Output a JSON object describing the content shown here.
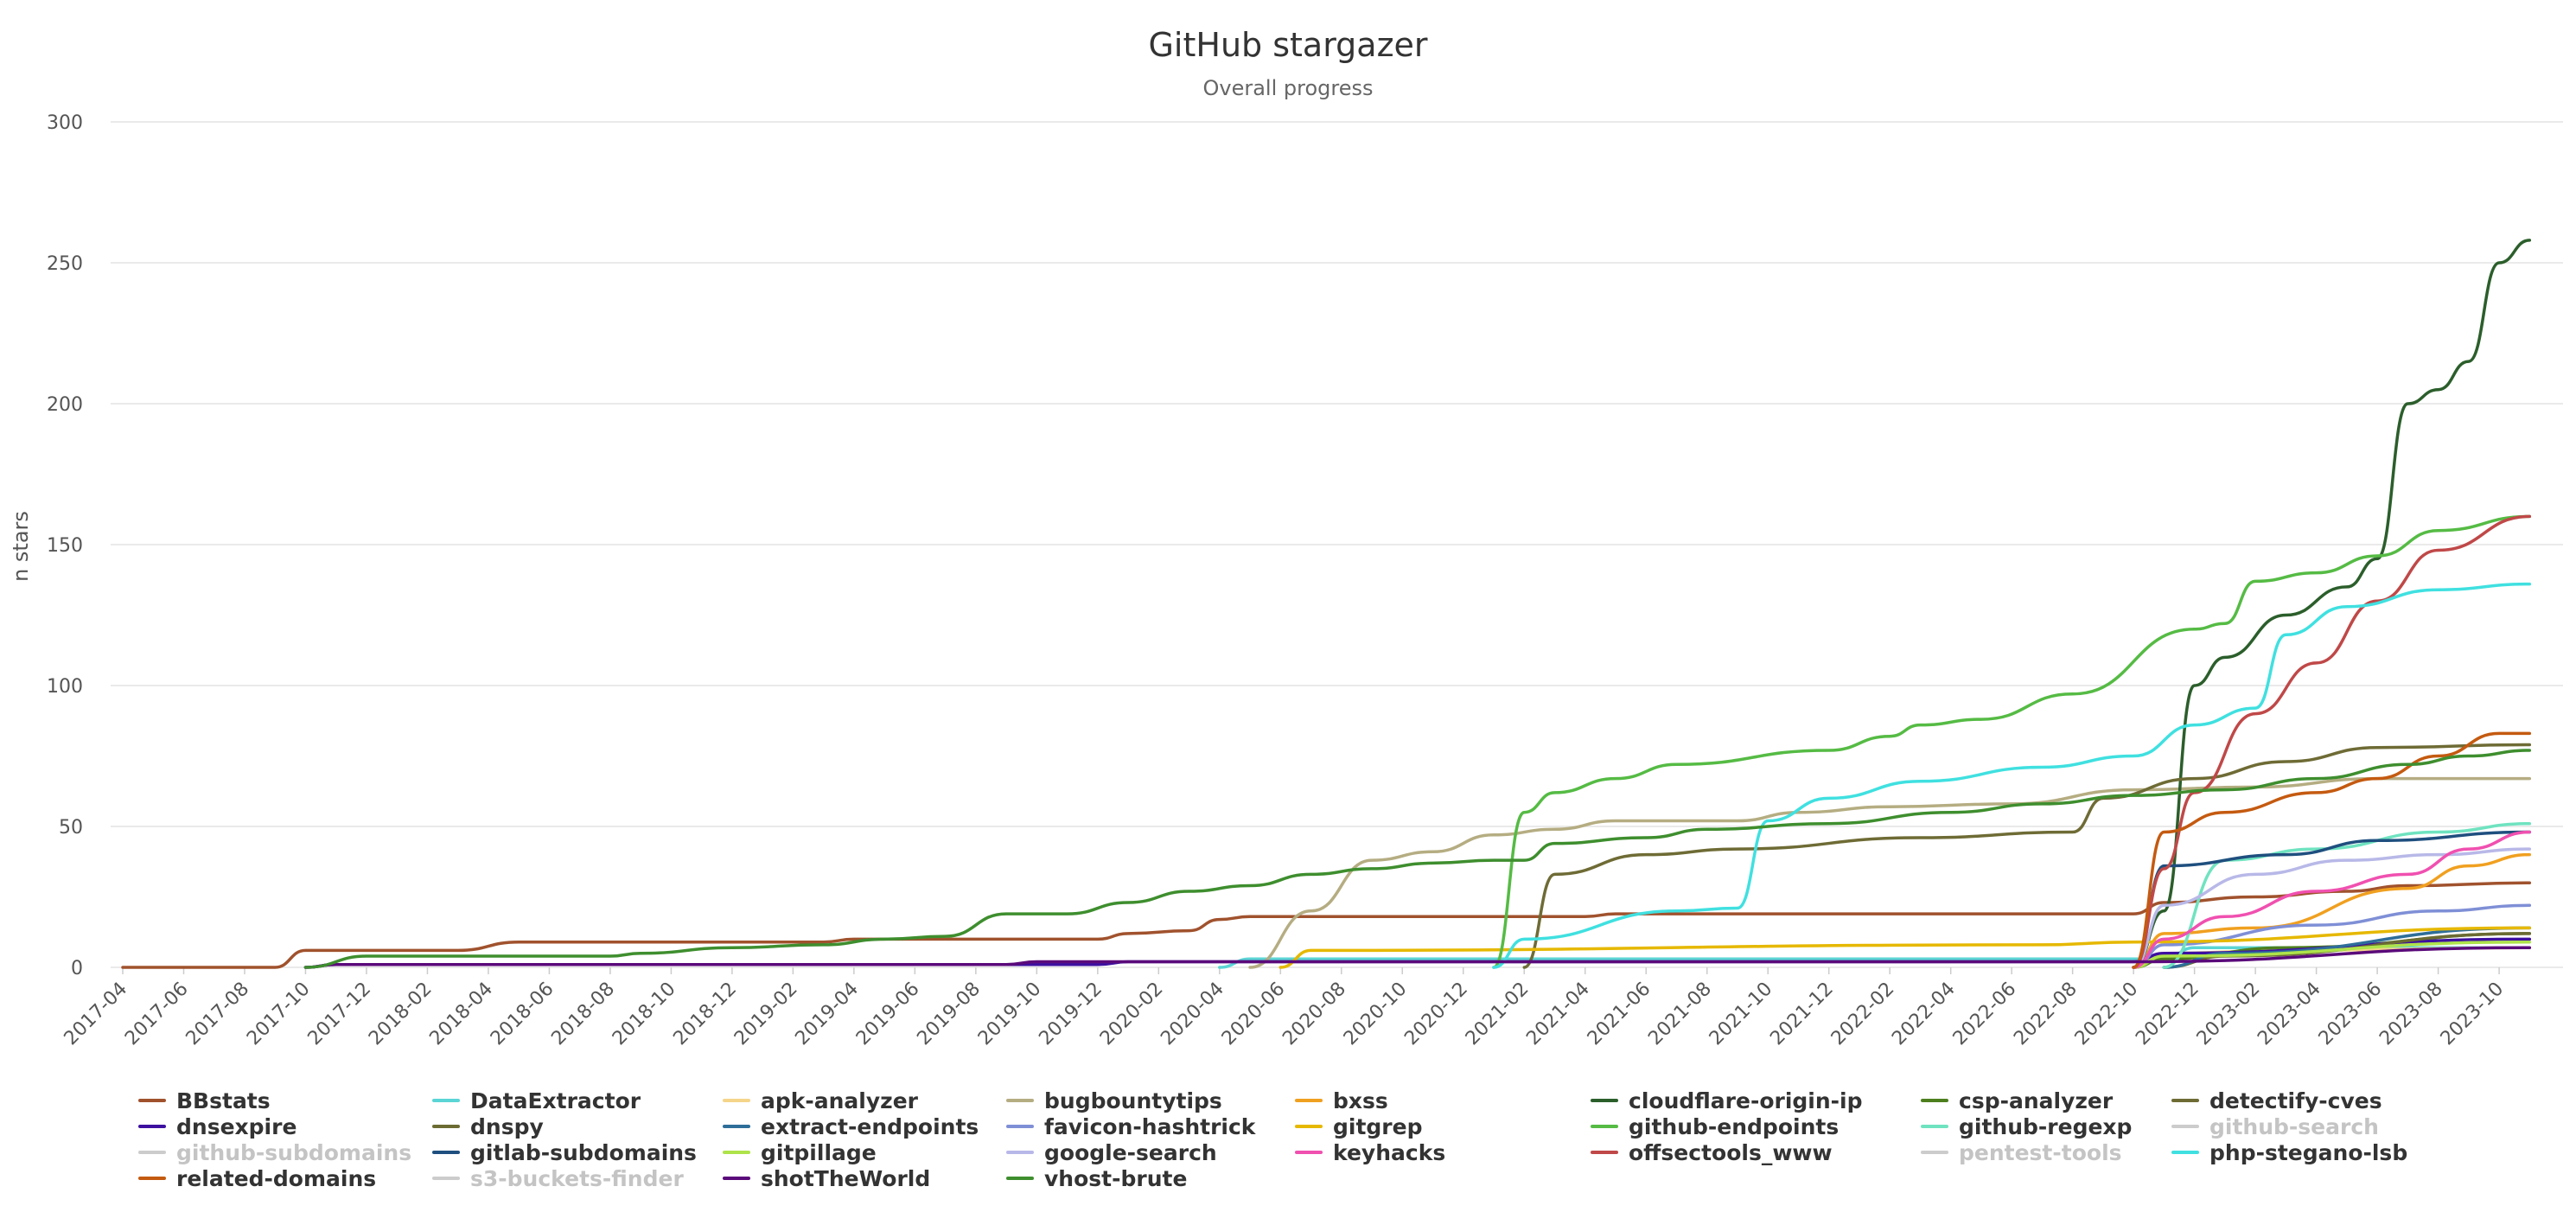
{
  "chart_data": {
    "type": "line",
    "title": "GitHub stargazer",
    "subtitle": "Overall progress",
    "ylabel": "n stars",
    "xlabel": "",
    "ylim": [
      0,
      300
    ],
    "yticks": [
      0,
      50,
      100,
      150,
      200,
      250,
      300
    ],
    "grid": true,
    "legend_position": "bottom",
    "x_range": [
      "2017-04",
      "2023-12"
    ],
    "x_ticks": [
      "2017-04",
      "2017-06",
      "2017-08",
      "2017-10",
      "2017-12",
      "2018-02",
      "2018-04",
      "2018-06",
      "2018-08",
      "2018-10",
      "2018-12",
      "2019-02",
      "2019-04",
      "2019-06",
      "2019-08",
      "2019-10",
      "2019-12",
      "2020-02",
      "2020-04",
      "2020-06",
      "2020-08",
      "2020-10",
      "2020-12",
      "2021-02",
      "2021-04",
      "2021-06",
      "2021-08",
      "2021-10",
      "2021-12",
      "2022-02",
      "2022-04",
      "2022-06",
      "2022-08",
      "2022-10",
      "2022-12",
      "2023-02",
      "2023-04",
      "2023-06",
      "2023-08",
      "2023-10"
    ],
    "series": [
      {
        "name": "BBstats",
        "color": "#a0522d",
        "visible": true,
        "points": [
          [
            "2017-04",
            0
          ],
          [
            "2017-09",
            0
          ],
          [
            "2017-10",
            6
          ],
          [
            "2018-03",
            6
          ],
          [
            "2018-05",
            9
          ],
          [
            "2019-03",
            9
          ],
          [
            "2019-04",
            10
          ],
          [
            "2019-12",
            10
          ],
          [
            "2020-01",
            12
          ],
          [
            "2020-03",
            13
          ],
          [
            "2020-04",
            17
          ],
          [
            "2020-05",
            18
          ],
          [
            "2021-04",
            18
          ],
          [
            "2021-05",
            19
          ],
          [
            "2022-10",
            19
          ],
          [
            "2022-11",
            23
          ],
          [
            "2023-02",
            25
          ],
          [
            "2023-05",
            27
          ],
          [
            "2023-07",
            29
          ],
          [
            "2023-11",
            30
          ]
        ]
      },
      {
        "name": "DataExtractor",
        "color": "#5bd5d5",
        "visible": true,
        "points": [
          [
            "2020-04",
            0
          ],
          [
            "2020-05",
            3
          ],
          [
            "2022-11",
            3
          ],
          [
            "2022-12",
            7
          ],
          [
            "2023-11",
            7
          ]
        ]
      },
      {
        "name": "apk-analyzer",
        "color": "#f5d58a",
        "visible": true,
        "points": [
          [
            "2022-10",
            0
          ],
          [
            "2022-11",
            5
          ],
          [
            "2023-03",
            6
          ],
          [
            "2023-11",
            7
          ]
        ]
      },
      {
        "name": "bugbountytips",
        "color": "#b5ad82",
        "visible": true,
        "points": [
          [
            "2020-05",
            0
          ],
          [
            "2020-07",
            20
          ],
          [
            "2020-09",
            38
          ],
          [
            "2020-11",
            41
          ],
          [
            "2021-01",
            47
          ],
          [
            "2021-03",
            49
          ],
          [
            "2021-05",
            52
          ],
          [
            "2021-09",
            52
          ],
          [
            "2021-11",
            55
          ],
          [
            "2022-02",
            57
          ],
          [
            "2022-06",
            58
          ],
          [
            "2022-10",
            63
          ],
          [
            "2023-02",
            64
          ],
          [
            "2023-06",
            67
          ],
          [
            "2023-11",
            67
          ]
        ]
      },
      {
        "name": "bxss",
        "color": "#f0a020",
        "visible": true,
        "points": [
          [
            "2022-10",
            0
          ],
          [
            "2022-11",
            12
          ],
          [
            "2023-02",
            14
          ],
          [
            "2023-07",
            28
          ],
          [
            "2023-09",
            36
          ],
          [
            "2023-11",
            40
          ]
        ]
      },
      {
        "name": "cloudflare-origin-ip",
        "color": "#2b5e2b",
        "visible": true,
        "points": [
          [
            "2022-10",
            0
          ],
          [
            "2022-11",
            20
          ],
          [
            "2022-12",
            100
          ],
          [
            "2023-01",
            110
          ],
          [
            "2023-03",
            125
          ],
          [
            "2023-05",
            135
          ],
          [
            "2023-06",
            145
          ],
          [
            "2023-07",
            200
          ],
          [
            "2023-08",
            205
          ],
          [
            "2023-09",
            215
          ],
          [
            "2023-10",
            250
          ],
          [
            "2023-11",
            258
          ]
        ]
      },
      {
        "name": "csp-analyzer",
        "color": "#4d7f1e",
        "visible": true,
        "points": [
          [
            "2022-10",
            0
          ],
          [
            "2022-11",
            3
          ],
          [
            "2023-03",
            7
          ],
          [
            "2023-11",
            12
          ]
        ]
      },
      {
        "name": "detectify-cves",
        "color": "#6e6b35",
        "visible": true,
        "points": [
          [
            "2021-02",
            0
          ],
          [
            "2021-03",
            33
          ],
          [
            "2021-06",
            40
          ],
          [
            "2021-09",
            42
          ],
          [
            "2022-03",
            46
          ],
          [
            "2022-08",
            48
          ],
          [
            "2022-09",
            60
          ],
          [
            "2022-12",
            67
          ],
          [
            "2023-03",
            73
          ],
          [
            "2023-06",
            78
          ],
          [
            "2023-11",
            79
          ]
        ]
      },
      {
        "name": "dnsexpire",
        "color": "#3d10a0",
        "visible": true,
        "points": [
          [
            "2017-10",
            0
          ],
          [
            "2017-11",
            1
          ],
          [
            "2019-12",
            1
          ],
          [
            "2020-01",
            2
          ],
          [
            "2022-10",
            2
          ],
          [
            "2022-11",
            5
          ],
          [
            "2023-11",
            10
          ]
        ]
      },
      {
        "name": "dnspy",
        "color": "#6b6b32",
        "visible": true,
        "points": [
          [
            "2022-11",
            0
          ],
          [
            "2023-01",
            4
          ],
          [
            "2023-11",
            12
          ]
        ]
      },
      {
        "name": "extract-endpoints",
        "color": "#2e6e99",
        "visible": true,
        "points": [
          [
            "2022-11",
            0
          ],
          [
            "2023-01",
            5
          ],
          [
            "2023-11",
            14
          ]
        ]
      },
      {
        "name": "favicon-hashtrick",
        "color": "#7f8fd6",
        "visible": true,
        "points": [
          [
            "2022-10",
            0
          ],
          [
            "2022-11",
            8
          ],
          [
            "2023-04",
            15
          ],
          [
            "2023-08",
            20
          ],
          [
            "2023-11",
            22
          ]
        ]
      },
      {
        "name": "gitgrep",
        "color": "#e6b800",
        "visible": true,
        "points": [
          [
            "2020-06",
            0
          ],
          [
            "2020-07",
            6
          ],
          [
            "2022-07",
            8
          ],
          [
            "2022-10",
            9
          ],
          [
            "2023-11",
            14
          ]
        ]
      },
      {
        "name": "github-endpoints",
        "color": "#55bb44",
        "visible": true,
        "points": [
          [
            "2021-01",
            0
          ],
          [
            "2021-02",
            55
          ],
          [
            "2021-03",
            62
          ],
          [
            "2021-05",
            67
          ],
          [
            "2021-07",
            72
          ],
          [
            "2021-12",
            77
          ],
          [
            "2022-02",
            82
          ],
          [
            "2022-03",
            86
          ],
          [
            "2022-05",
            88
          ],
          [
            "2022-08",
            97
          ],
          [
            "2022-12",
            120
          ],
          [
            "2023-01",
            122
          ],
          [
            "2023-02",
            137
          ],
          [
            "2023-04",
            140
          ],
          [
            "2023-06",
            146
          ],
          [
            "2023-08",
            155
          ],
          [
            "2023-11",
            160
          ]
        ]
      },
      {
        "name": "github-regexp",
        "color": "#6fe3c0",
        "visible": true,
        "points": [
          [
            "2022-11",
            0
          ],
          [
            "2023-01",
            38
          ],
          [
            "2023-04",
            42
          ],
          [
            "2023-08",
            48
          ],
          [
            "2023-11",
            51
          ]
        ]
      },
      {
        "name": "github-search",
        "color": "#c8c8c8",
        "visible": false,
        "points": []
      },
      {
        "name": "github-subdomains",
        "color": "#c8c8c8",
        "visible": false,
        "points": []
      },
      {
        "name": "gitlab-subdomains",
        "color": "#1f4f7f",
        "visible": true,
        "points": [
          [
            "2022-10",
            0
          ],
          [
            "2022-11",
            36
          ],
          [
            "2023-03",
            40
          ],
          [
            "2023-06",
            45
          ],
          [
            "2023-11",
            48
          ]
        ]
      },
      {
        "name": "gitpillage",
        "color": "#aee34a",
        "visible": true,
        "points": [
          [
            "2022-10",
            0
          ],
          [
            "2022-11",
            4
          ],
          [
            "2023-11",
            9
          ]
        ]
      },
      {
        "name": "google-search",
        "color": "#b8b8e8",
        "visible": true,
        "points": [
          [
            "2022-10",
            0
          ],
          [
            "2022-11",
            22
          ],
          [
            "2023-02",
            33
          ],
          [
            "2023-05",
            38
          ],
          [
            "2023-08",
            40
          ],
          [
            "2023-11",
            42
          ]
        ]
      },
      {
        "name": "keyhacks",
        "color": "#f050b0",
        "visible": true,
        "points": [
          [
            "2022-10",
            0
          ],
          [
            "2022-11",
            10
          ],
          [
            "2023-01",
            18
          ],
          [
            "2023-04",
            27
          ],
          [
            "2023-07",
            33
          ],
          [
            "2023-09",
            42
          ],
          [
            "2023-11",
            48
          ]
        ]
      },
      {
        "name": "offsectools_www",
        "color": "#c04848",
        "visible": true,
        "points": [
          [
            "2022-10",
            0
          ],
          [
            "2022-11",
            35
          ],
          [
            "2022-12",
            62
          ],
          [
            "2023-02",
            90
          ],
          [
            "2023-04",
            108
          ],
          [
            "2023-06",
            130
          ],
          [
            "2023-08",
            148
          ],
          [
            "2023-11",
            160
          ]
        ]
      },
      {
        "name": "pentest-tools",
        "color": "#c8c8c8",
        "visible": false,
        "points": []
      },
      {
        "name": "php-stegano-lsb",
        "color": "#40e0e0",
        "visible": true,
        "points": [
          [
            "2021-01",
            0
          ],
          [
            "2021-02",
            10
          ],
          [
            "2021-07",
            20
          ],
          [
            "2021-09",
            21
          ],
          [
            "2021-10",
            52
          ],
          [
            "2021-12",
            60
          ],
          [
            "2022-03",
            66
          ],
          [
            "2022-07",
            71
          ],
          [
            "2022-10",
            75
          ],
          [
            "2022-12",
            86
          ],
          [
            "2023-02",
            92
          ],
          [
            "2023-03",
            118
          ],
          [
            "2023-05",
            128
          ],
          [
            "2023-08",
            134
          ],
          [
            "2023-11",
            136
          ]
        ]
      },
      {
        "name": "related-domains",
        "color": "#c45a10",
        "visible": true,
        "points": [
          [
            "2022-10",
            0
          ],
          [
            "2022-11",
            48
          ],
          [
            "2023-01",
            55
          ],
          [
            "2023-04",
            62
          ],
          [
            "2023-06",
            67
          ],
          [
            "2023-08",
            75
          ],
          [
            "2023-10",
            83
          ],
          [
            "2023-11",
            83
          ]
        ]
      },
      {
        "name": "s3-buckets-finder",
        "color": "#c8c8c8",
        "visible": false,
        "points": []
      },
      {
        "name": "shotTheWorld",
        "color": "#5a0a7a",
        "visible": true,
        "points": [
          [
            "2017-10",
            0
          ],
          [
            "2017-11",
            1
          ],
          [
            "2019-09",
            1
          ],
          [
            "2019-10",
            2
          ],
          [
            "2022-10",
            2
          ],
          [
            "2023-11",
            7
          ]
        ]
      },
      {
        "name": "vhost-brute",
        "color": "#3e8e2e",
        "visible": true,
        "points": [
          [
            "2017-10",
            0
          ],
          [
            "2017-12",
            4
          ],
          [
            "2018-08",
            4
          ],
          [
            "2018-09",
            5
          ],
          [
            "2018-12",
            7
          ],
          [
            "2019-03",
            8
          ],
          [
            "2019-05",
            10
          ],
          [
            "2019-07",
            11
          ],
          [
            "2019-09",
            19
          ],
          [
            "2019-11",
            19
          ],
          [
            "2020-01",
            23
          ],
          [
            "2020-03",
            27
          ],
          [
            "2020-05",
            29
          ],
          [
            "2020-07",
            33
          ],
          [
            "2020-09",
            35
          ],
          [
            "2020-11",
            37
          ],
          [
            "2021-01",
            38
          ],
          [
            "2021-02",
            38
          ],
          [
            "2021-03",
            44
          ],
          [
            "2021-06",
            46
          ],
          [
            "2021-08",
            49
          ],
          [
            "2021-12",
            51
          ],
          [
            "2022-04",
            55
          ],
          [
            "2022-07",
            58
          ],
          [
            "2022-10",
            61
          ],
          [
            "2023-01",
            63
          ],
          [
            "2023-04",
            67
          ],
          [
            "2023-07",
            72
          ],
          [
            "2023-09",
            75
          ],
          [
            "2023-11",
            77
          ]
        ]
      }
    ]
  },
  "legend": {
    "items": [
      "BBstats",
      "DataExtractor",
      "apk-analyzer",
      "bugbountytips",
      "bxss",
      "cloudflare-origin-ip",
      "csp-analyzer",
      "detectify-cves",
      "dnsexpire",
      "dnspy",
      "extract-endpoints",
      "favicon-hashtrick",
      "gitgrep",
      "github-endpoints",
      "github-regexp",
      "github-search",
      "github-subdomains",
      "gitlab-subdomains",
      "gitpillage",
      "google-search",
      "keyhacks",
      "offsectools_www",
      "pentest-tools",
      "php-stegano-lsb",
      "related-domains",
      "s3-buckets-finder",
      "shotTheWorld",
      "vhost-brute"
    ]
  }
}
